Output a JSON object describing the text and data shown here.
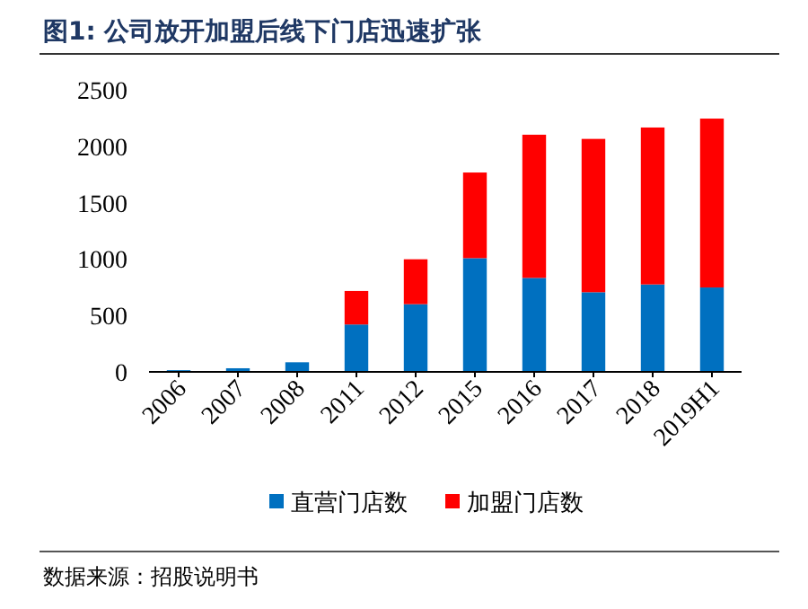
{
  "chart_data": {
    "type": "bar",
    "title": "图1: 公司放开加盟后线下门店迅速扩张",
    "categories": [
      "2006",
      "2007",
      "2008",
      "2011",
      "2012",
      "2015",
      "2016",
      "2017",
      "2018",
      "2019H1"
    ],
    "series": [
      {
        "name": "直营门店数",
        "color": "#0070c0",
        "values": [
          15,
          32,
          85,
          420,
          600,
          1008,
          833,
          706,
          775,
          748
        ]
      },
      {
        "name": "加盟门店数",
        "color": "#ff0000",
        "values": [
          0,
          0,
          0,
          297,
          398,
          759,
          1269,
          1359,
          1391,
          1497
        ]
      }
    ],
    "stacked": true,
    "ylim": [
      0,
      2500
    ],
    "yticks": [
      0,
      500,
      1000,
      1500,
      2000,
      2500
    ],
    "grid": false,
    "legend": "bottom",
    "annotations": [
      "数据来源：招股说明书"
    ]
  }
}
